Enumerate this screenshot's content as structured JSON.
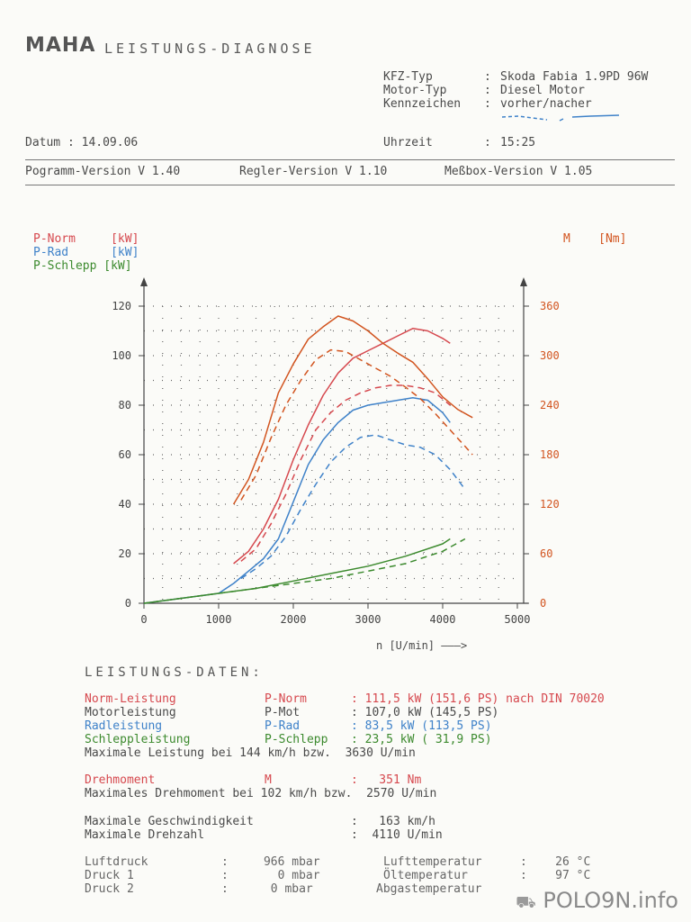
{
  "header": {
    "logo": "MAHA",
    "title": "LEISTUNGS-DIAGNOSE",
    "kfz_label": "KFZ-Typ",
    "kfz_value": "Skoda Fabia 1.9PD 96W",
    "motor_label": "Motor-Typ",
    "motor_value": "Diesel Motor",
    "kennzeichen_label": "Kennzeichen",
    "kennzeichen_value": "vorher/nacher",
    "datum_label": "Datum",
    "datum_value": "14.09.06",
    "uhrzeit_label": "Uhrzeit",
    "uhrzeit_value": "15:25",
    "colon": ":",
    "programm_version": "Pogramm-Version V 1.40",
    "regler_version": "Regler-Version V 1.10",
    "messbox_version": "Meßbox-Version V 1.05"
  },
  "colors": {
    "p_norm": "#d6484e",
    "p_rad": "#3f82c9",
    "p_schlepp": "#3c8a2e",
    "torque": "#d2541f",
    "grid": "#6a6a6a",
    "axis": "#444444"
  },
  "chart_data": {
    "type": "line",
    "legend_left": [
      {
        "name": "P-Norm",
        "unit": "[kW]"
      },
      {
        "name": "P-Rad",
        "unit": "[kW]"
      },
      {
        "name": "P-Schlepp",
        "unit": "[kW]"
      }
    ],
    "legend_right": {
      "name": "M",
      "unit": "[Nm]"
    },
    "xlabel": "n [U/min]",
    "xlabel_arrow": "———>",
    "xlim": [
      0,
      5000
    ],
    "ylim_left": [
      0,
      120
    ],
    "ylim_right": [
      0,
      360
    ],
    "x_ticks": [
      "0",
      "1000",
      "2000",
      "3000",
      "4000",
      "5000"
    ],
    "y_left_ticks": [
      "0",
      "20",
      "40",
      "60",
      "80",
      "100",
      "120"
    ],
    "y_right_ticks": [
      "0",
      "60",
      "120",
      "180",
      "240",
      "300",
      "360"
    ],
    "grid": "dotted",
    "series": [
      {
        "name": "P-Norm",
        "axis": "left",
        "style": "solid",
        "color": "#d6484e",
        "x": [
          1200,
          1400,
          1600,
          1800,
          2000,
          2200,
          2400,
          2600,
          2800,
          3000,
          3200,
          3400,
          3600,
          3800,
          4000,
          4100
        ],
        "y": [
          16,
          21,
          30,
          42,
          58,
          72,
          84,
          93,
          99,
          102,
          105,
          108,
          111,
          110,
          107,
          105
        ]
      },
      {
        "name": "P-Norm",
        "axis": "left",
        "style": "dashed",
        "color": "#d6484e",
        "x": [
          1300,
          1500,
          1700,
          1900,
          2100,
          2300,
          2500,
          2700,
          2900,
          3100,
          3300,
          3500,
          3700,
          3900,
          4100
        ],
        "y": [
          17,
          22,
          32,
          44,
          58,
          70,
          77,
          82,
          85,
          87,
          88,
          88,
          87,
          85,
          80
        ]
      },
      {
        "name": "P-Rad",
        "axis": "left",
        "style": "solid",
        "color": "#3f82c9",
        "x": [
          0,
          500,
          1000,
          1200,
          1400,
          1600,
          1800,
          2000,
          2200,
          2400,
          2600,
          2800,
          3000,
          3200,
          3400,
          3600,
          3800,
          4000,
          4100
        ],
        "y": [
          0,
          2,
          4,
          8,
          13,
          18,
          26,
          41,
          56,
          66,
          73,
          78,
          80,
          81,
          82,
          83,
          82,
          77,
          73
        ]
      },
      {
        "name": "P-Rad",
        "axis": "left",
        "style": "dashed",
        "color": "#3f82c9",
        "x": [
          1300,
          1500,
          1700,
          1900,
          2100,
          2300,
          2500,
          2700,
          2900,
          3100,
          3300,
          3500,
          3700,
          3900,
          4100,
          4300
        ],
        "y": [
          10,
          14,
          19,
          27,
          38,
          48,
          57,
          63,
          67,
          68,
          66,
          64,
          63,
          60,
          54,
          46
        ]
      },
      {
        "name": "P-Schlepp",
        "axis": "left",
        "style": "solid",
        "color": "#3c8a2e",
        "x": [
          0,
          500,
          1000,
          1500,
          2000,
          2500,
          3000,
          3500,
          4000,
          4100
        ],
        "y": [
          0,
          2,
          4,
          6,
          9,
          12,
          15,
          19,
          24,
          26
        ]
      },
      {
        "name": "P-Schlepp",
        "axis": "left",
        "style": "dashed",
        "color": "#3c8a2e",
        "x": [
          0,
          500,
          1000,
          1500,
          2000,
          2500,
          3000,
          3500,
          4000,
          4300
        ],
        "y": [
          0,
          2,
          4,
          6,
          8,
          10,
          13,
          16,
          21,
          26
        ]
      },
      {
        "name": "M",
        "axis": "right",
        "style": "solid",
        "color": "#d2541f",
        "x": [
          1200,
          1400,
          1600,
          1800,
          2000,
          2200,
          2400,
          2600,
          2800,
          3000,
          3200,
          3400,
          3600,
          3800,
          4000,
          4200,
          4400
        ],
        "y": [
          120,
          150,
          195,
          255,
          290,
          320,
          335,
          348,
          342,
          330,
          315,
          303,
          292,
          272,
          250,
          235,
          225
        ]
      },
      {
        "name": "M",
        "axis": "right",
        "style": "dashed",
        "color": "#d2541f",
        "x": [
          1300,
          1500,
          1700,
          1900,
          2100,
          2300,
          2500,
          2700,
          2900,
          3100,
          3300,
          3500,
          3700,
          3900,
          4100,
          4300,
          4400
        ],
        "y": [
          125,
          155,
          200,
          240,
          270,
          295,
          307,
          305,
          295,
          285,
          275,
          262,
          248,
          230,
          210,
          190,
          180
        ]
      }
    ]
  },
  "daten": {
    "heading": "LEISTUNGS-DATEN:",
    "norm": {
      "label": "Norm-Leistung",
      "sym": "P-Norm",
      "value": ": 111,5 kW (151,6 PS) nach DIN 70020"
    },
    "motor": {
      "label": "Motorleistung",
      "sym": "P-Mot",
      "value": ": 107,0 kW (145,5 PS)"
    },
    "rad": {
      "label": "Radleistung",
      "sym": "P-Rad",
      "value": ": 83,5 kW (113,5 PS)"
    },
    "schlepp": {
      "label": "Schleppleistung",
      "sym": "P-Schlepp",
      "value": ": 23,5 kW ( 31,9 PS)"
    },
    "max_leistung": "Maximale Leistung bei 144 km/h bzw.  3630 U/min",
    "drehmoment": {
      "label": "Drehmoment",
      "sym": "M",
      "value": ":   351 Nm"
    },
    "max_drehmoment": "Maximales Drehmoment bei 102 km/h bzw.  2570 U/min",
    "max_geschw": {
      "label": "Maximale Geschwindigkeit",
      "value": ":   163 km/h"
    },
    "max_drehzahl": {
      "label": "Maximale Drehzahl",
      "value": ":  4110 U/min"
    },
    "luftdruck": {
      "label": "Luftdruck",
      "value": ":     966 mbar"
    },
    "druck1": {
      "label": "Druck 1",
      "value": ":       0 mbar"
    },
    "druck2": {
      "label": "Druck 2",
      "value": ":      0 mbar"
    },
    "lufttemp": {
      "label": "Lufttemperatur",
      "value": ":    26 °C"
    },
    "oeltemp": {
      "label": "Öltemperatur",
      "value": ":    97 °C"
    },
    "abgastemp": {
      "label": "Abgastemperatur",
      "value": ""
    }
  },
  "watermark": "POLO9N.info"
}
